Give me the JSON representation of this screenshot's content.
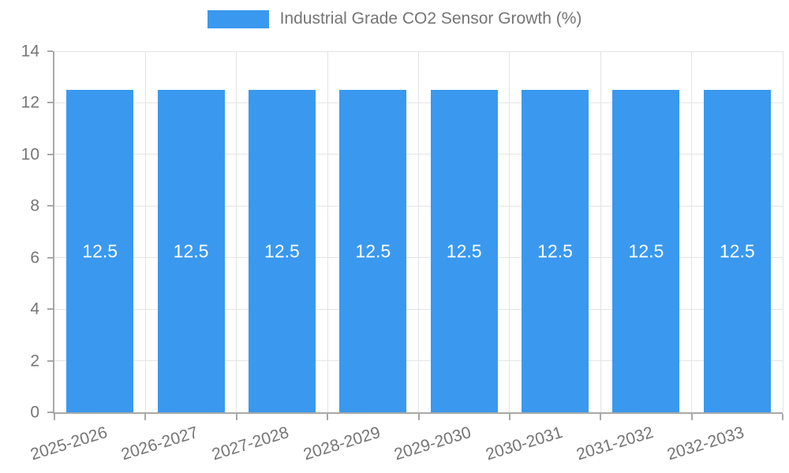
{
  "chart_data": {
    "type": "bar",
    "title": "Industrial Grade CO2 Sensor Growth (%)",
    "categories": [
      "2025-2026",
      "2026-2027",
      "2027-2028",
      "2028-2029",
      "2029-2030",
      "2030-2031",
      "2031-2032",
      "2032-2033"
    ],
    "series": [
      {
        "name": "Industrial Grade CO2 Sensor Growth (%)",
        "values": [
          12.5,
          12.5,
          12.5,
          12.5,
          12.5,
          12.5,
          12.5,
          12.5
        ]
      }
    ],
    "value_labels": [
      "12.5",
      "12.5",
      "12.5",
      "12.5",
      "12.5",
      "12.5",
      "12.5",
      "12.5"
    ],
    "ytick_labels": [
      "0",
      "2",
      "4",
      "6",
      "8",
      "10",
      "12",
      "14"
    ],
    "yticks": [
      0,
      2,
      4,
      6,
      8,
      10,
      12,
      14
    ],
    "ylim": [
      0,
      14
    ],
    "xlabel": "",
    "ylabel": "",
    "legend_position": "top",
    "grid": true,
    "colors": {
      "bar": "#3A99EE",
      "bar_label": "#FFFFFF",
      "axis_text": "#757575",
      "axis_line": "#A8A8A8",
      "gridline": "#E4E4E4",
      "background": "#FFFFFF"
    }
  }
}
